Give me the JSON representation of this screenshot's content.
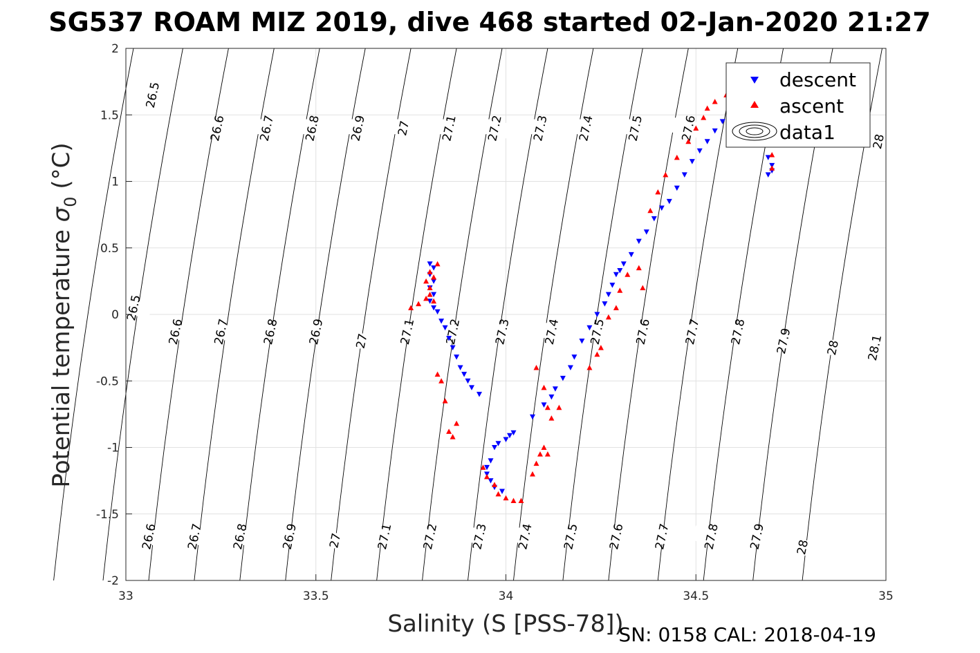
{
  "chart_data": {
    "type": "scatter",
    "title": "SG537 ROAM MIZ 2019, dive 468 started 02-Jan-2020 21:27",
    "xlabel": "Salinity (S [PSS-78])",
    "ylabel_main": "Potential temperature ",
    "ylabel_symbol": "σ",
    "ylabel_subscript": "0",
    "ylabel_unit": " (°C)",
    "xlim": [
      33,
      35
    ],
    "ylim": [
      -2,
      2
    ],
    "x_ticks": [
      33,
      33.5,
      34,
      34.5,
      35
    ],
    "x_tick_labels": [
      "33",
      "33.5",
      "34",
      "34.5",
      "35"
    ],
    "y_ticks": [
      -2,
      -1.5,
      -1,
      -0.5,
      0,
      0.5,
      1,
      1.5,
      2
    ],
    "y_tick_labels": [
      "-2",
      "-1.5",
      "-1",
      "-0.5",
      "0",
      "0.5",
      "1",
      "1.5",
      "2"
    ],
    "grid": true,
    "legend_placement": "top-right",
    "legend": [
      "descent",
      "ascent",
      "data1"
    ],
    "colors": {
      "descent": "#0000ff",
      "ascent": "#ff0000",
      "contour": "#000000",
      "grid": "#e1e1e1"
    },
    "footer": "SN: 0158  CAL: 2018-04-19",
    "contours": {
      "levels": [
        "26.5",
        "26.6",
        "26.7",
        "26.8",
        "26.9",
        "27",
        "27.1",
        "27.2",
        "27.3",
        "27.4",
        "27.5",
        "27.6",
        "27.7",
        "27.8",
        "27.9",
        "28",
        "28.1"
      ],
      "labels": [
        {
          "text": "26.5",
          "s": 33.07,
          "t": 1.65
        },
        {
          "text": "26.6",
          "s": 33.24,
          "t": 1.4
        },
        {
          "text": "26.7",
          "s": 33.37,
          "t": 1.4
        },
        {
          "text": "26.8",
          "s": 33.49,
          "t": 1.4
        },
        {
          "text": "26.9",
          "s": 33.61,
          "t": 1.4
        },
        {
          "text": "27",
          "s": 33.73,
          "t": 1.4
        },
        {
          "text": "27.1",
          "s": 33.85,
          "t": 1.4
        },
        {
          "text": "27.2",
          "s": 33.97,
          "t": 1.4
        },
        {
          "text": "27.3",
          "s": 34.09,
          "t": 1.4
        },
        {
          "text": "27.4",
          "s": 34.21,
          "t": 1.4
        },
        {
          "text": "27.5",
          "s": 34.34,
          "t": 1.4
        },
        {
          "text": "27.6",
          "s": 34.48,
          "t": 1.4
        },
        {
          "text": "28",
          "s": 34.98,
          "t": 1.3
        },
        {
          "text": "26.5",
          "s": 33.02,
          "t": 0.05
        },
        {
          "text": "26.6",
          "s": 33.13,
          "t": -0.13
        },
        {
          "text": "26.7",
          "s": 33.25,
          "t": -0.13
        },
        {
          "text": "26.8",
          "s": 33.38,
          "t": -0.13
        },
        {
          "text": "26.9",
          "s": 33.5,
          "t": -0.13
        },
        {
          "text": "27",
          "s": 33.62,
          "t": -0.2
        },
        {
          "text": "27.1",
          "s": 33.74,
          "t": -0.13
        },
        {
          "text": "27.2",
          "s": 33.86,
          "t": -0.13
        },
        {
          "text": "27.3",
          "s": 33.99,
          "t": -0.13
        },
        {
          "text": "27.4",
          "s": 34.12,
          "t": -0.13
        },
        {
          "text": "27.5",
          "s": 34.24,
          "t": -0.13
        },
        {
          "text": "27.6",
          "s": 34.36,
          "t": -0.13
        },
        {
          "text": "27.7",
          "s": 34.49,
          "t": -0.13
        },
        {
          "text": "27.8",
          "s": 34.61,
          "t": -0.13
        },
        {
          "text": "27.9",
          "s": 34.73,
          "t": -0.2
        },
        {
          "text": "28",
          "s": 34.86,
          "t": -0.25
        },
        {
          "text": "28.1",
          "s": 34.97,
          "t": -0.25
        },
        {
          "text": "26.6",
          "s": 33.06,
          "t": -1.67
        },
        {
          "text": "26.7",
          "s": 33.18,
          "t": -1.67
        },
        {
          "text": "26.8",
          "s": 33.3,
          "t": -1.67
        },
        {
          "text": "26.9",
          "s": 33.43,
          "t": -1.67
        },
        {
          "text": "27",
          "s": 33.55,
          "t": -1.7
        },
        {
          "text": "27.1",
          "s": 33.68,
          "t": -1.67
        },
        {
          "text": "27.2",
          "s": 33.8,
          "t": -1.67
        },
        {
          "text": "27.3",
          "s": 33.93,
          "t": -1.67
        },
        {
          "text": "27.4",
          "s": 34.05,
          "t": -1.67
        },
        {
          "text": "27.5",
          "s": 34.17,
          "t": -1.67
        },
        {
          "text": "27.6",
          "s": 34.29,
          "t": -1.67
        },
        {
          "text": "27.7",
          "s": 34.41,
          "t": -1.67
        },
        {
          "text": "27.8",
          "s": 34.54,
          "t": -1.67
        },
        {
          "text": "27.9",
          "s": 34.66,
          "t": -1.67
        },
        {
          "text": "28",
          "s": 34.78,
          "t": -1.75
        }
      ]
    },
    "series": [
      {
        "name": "descent",
        "marker": "triangle-down",
        "points": [
          [
            33.8,
            0.38
          ],
          [
            33.81,
            0.35
          ],
          [
            33.8,
            0.3
          ],
          [
            33.81,
            0.25
          ],
          [
            33.8,
            0.2
          ],
          [
            33.81,
            0.15
          ],
          [
            33.8,
            0.1
          ],
          [
            33.81,
            0.05
          ],
          [
            33.82,
            0.02
          ],
          [
            33.83,
            -0.05
          ],
          [
            33.84,
            -0.1
          ],
          [
            33.85,
            -0.18
          ],
          [
            33.86,
            -0.25
          ],
          [
            33.87,
            -0.32
          ],
          [
            33.88,
            -0.4
          ],
          [
            33.89,
            -0.45
          ],
          [
            33.9,
            -0.5
          ],
          [
            33.91,
            -0.55
          ],
          [
            33.93,
            -0.6
          ],
          [
            33.96,
            -1.1
          ],
          [
            33.95,
            -1.15
          ],
          [
            33.95,
            -1.2
          ],
          [
            33.96,
            -1.25
          ],
          [
            33.97,
            -1.3
          ],
          [
            33.99,
            -1.33
          ],
          [
            33.97,
            -1.0
          ],
          [
            33.98,
            -0.97
          ],
          [
            34.0,
            -0.94
          ],
          [
            34.01,
            -0.91
          ],
          [
            34.02,
            -0.89
          ],
          [
            34.07,
            -0.77
          ],
          [
            34.1,
            -0.68
          ],
          [
            34.12,
            -0.62
          ],
          [
            34.13,
            -0.56
          ],
          [
            34.15,
            -0.48
          ],
          [
            34.17,
            -0.4
          ],
          [
            34.18,
            -0.32
          ],
          [
            34.2,
            -0.2
          ],
          [
            34.22,
            -0.1
          ],
          [
            34.24,
            0.0
          ],
          [
            34.26,
            0.08
          ],
          [
            34.27,
            0.15
          ],
          [
            34.28,
            0.22
          ],
          [
            34.29,
            0.3
          ],
          [
            34.3,
            0.33
          ],
          [
            34.31,
            0.38
          ],
          [
            34.33,
            0.45
          ],
          [
            34.35,
            0.55
          ],
          [
            34.37,
            0.62
          ],
          [
            34.39,
            0.72
          ],
          [
            34.41,
            0.8
          ],
          [
            34.43,
            0.85
          ],
          [
            34.45,
            0.95
          ],
          [
            34.47,
            1.05
          ],
          [
            34.49,
            1.15
          ],
          [
            34.51,
            1.23
          ],
          [
            34.53,
            1.3
          ],
          [
            34.55,
            1.38
          ],
          [
            34.57,
            1.45
          ],
          [
            34.59,
            1.52
          ],
          [
            34.61,
            1.58
          ],
          [
            34.63,
            1.65
          ],
          [
            34.64,
            1.68
          ],
          [
            34.69,
            1.18
          ],
          [
            34.7,
            1.12
          ],
          [
            34.7,
            1.08
          ],
          [
            34.69,
            1.05
          ]
        ]
      },
      {
        "name": "ascent",
        "marker": "triangle-up",
        "points": [
          [
            33.75,
            0.05
          ],
          [
            33.77,
            0.08
          ],
          [
            33.79,
            0.12
          ],
          [
            33.8,
            0.2
          ],
          [
            33.81,
            0.28
          ],
          [
            33.82,
            0.38
          ],
          [
            33.8,
            0.32
          ],
          [
            33.79,
            0.25
          ],
          [
            33.8,
            0.15
          ],
          [
            33.81,
            0.1
          ],
          [
            33.82,
            -0.45
          ],
          [
            33.83,
            -0.5
          ],
          [
            33.84,
            -0.65
          ],
          [
            33.85,
            -0.88
          ],
          [
            33.86,
            -0.92
          ],
          [
            33.87,
            -0.82
          ],
          [
            33.94,
            -1.15
          ],
          [
            33.95,
            -1.22
          ],
          [
            33.97,
            -1.28
          ],
          [
            33.98,
            -1.35
          ],
          [
            34.0,
            -1.38
          ],
          [
            34.02,
            -1.4
          ],
          [
            34.04,
            -1.4
          ],
          [
            34.07,
            -1.2
          ],
          [
            34.08,
            -1.12
          ],
          [
            34.09,
            -1.05
          ],
          [
            34.1,
            -1.0
          ],
          [
            34.11,
            -1.05
          ],
          [
            34.08,
            -0.4
          ],
          [
            34.1,
            -0.55
          ],
          [
            34.11,
            -0.7
          ],
          [
            34.12,
            -0.78
          ],
          [
            34.14,
            -0.7
          ],
          [
            34.22,
            -0.4
          ],
          [
            34.24,
            -0.3
          ],
          [
            34.25,
            -0.25
          ],
          [
            34.27,
            -0.02
          ],
          [
            34.29,
            0.05
          ],
          [
            34.3,
            0.18
          ],
          [
            34.32,
            0.3
          ],
          [
            34.35,
            0.35
          ],
          [
            34.36,
            0.2
          ],
          [
            34.38,
            0.78
          ],
          [
            34.4,
            0.92
          ],
          [
            34.42,
            1.05
          ],
          [
            34.45,
            1.18
          ],
          [
            34.48,
            1.3
          ],
          [
            34.5,
            1.4
          ],
          [
            34.52,
            1.48
          ],
          [
            34.53,
            1.55
          ],
          [
            34.55,
            1.6
          ],
          [
            34.58,
            1.65
          ],
          [
            34.6,
            1.68
          ],
          [
            34.62,
            1.7
          ],
          [
            34.65,
            1.68
          ],
          [
            34.68,
            1.55
          ],
          [
            34.69,
            1.4
          ],
          [
            34.7,
            1.3
          ],
          [
            34.7,
            1.2
          ],
          [
            34.7,
            1.1
          ]
        ]
      }
    ]
  }
}
